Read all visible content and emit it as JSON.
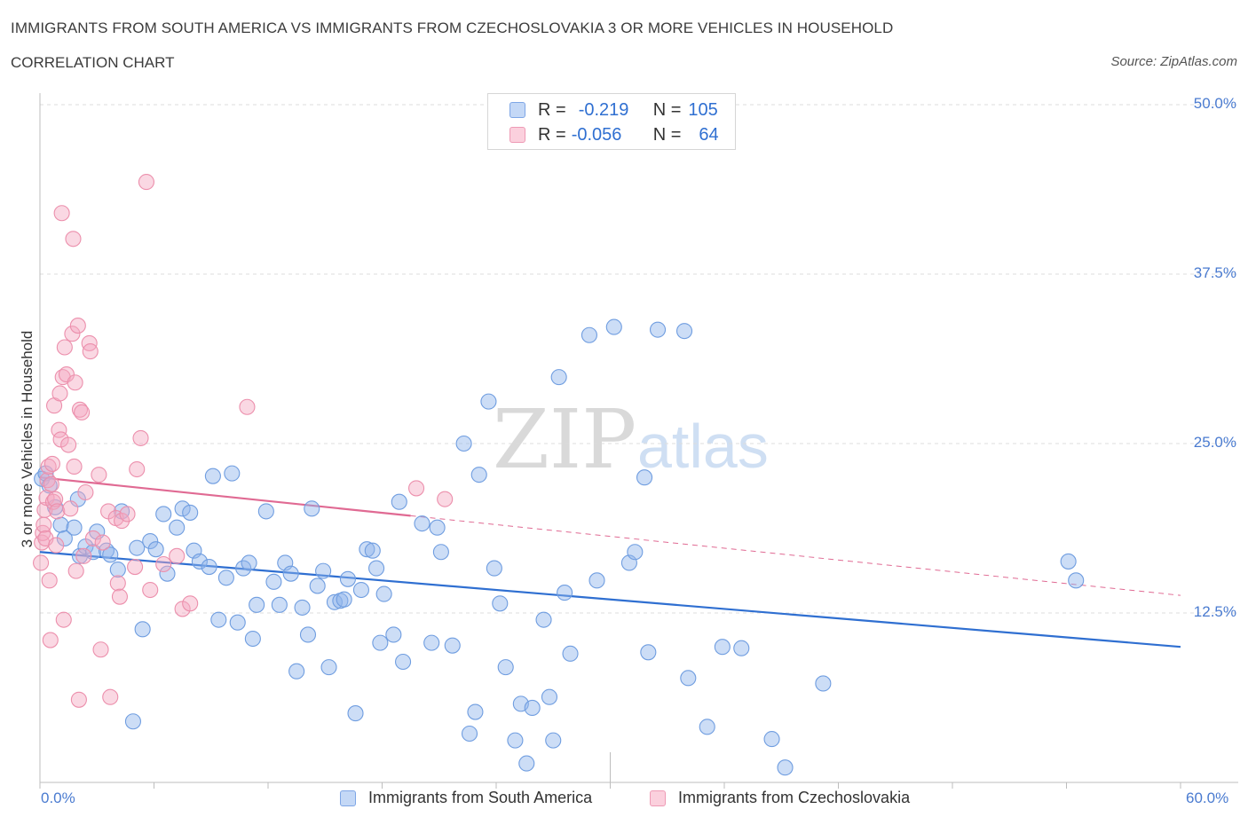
{
  "title": "IMMIGRANTS FROM SOUTH AMERICA VS IMMIGRANTS FROM CZECHOSLOVAKIA 3 OR MORE VEHICLES IN HOUSEHOLD",
  "subtitle": "CORRELATION CHART",
  "source": "Source: ZipAtlas.com",
  "watermark": {
    "zip": "ZIP",
    "atlas": "atlas"
  },
  "legend": {
    "r_label": "R =",
    "n_label": "N =",
    "series": [
      {
        "r": "-0.219",
        "n": "105"
      },
      {
        "r": "-0.056",
        "n": "64"
      }
    ]
  },
  "chart_data": {
    "type": "scatter",
    "xlabel": "",
    "ylabel": "3 or more Vehicles in Household",
    "xlim": [
      0,
      60
    ],
    "ylim": [
      0,
      50
    ],
    "x_tick_labels": [
      "0.0%",
      "60.0%"
    ],
    "y_ticks": [
      12.5,
      25.0,
      37.5,
      50.0
    ],
    "y_tick_labels": [
      "12.5%",
      "25.0%",
      "37.5%",
      "50.0%"
    ],
    "grid": true,
    "legend_position": "top-center",
    "series": [
      {
        "name": "Immigrants from South America",
        "color": "#8db4ec",
        "edge": "#6f9de0",
        "trend": {
          "x": [
            0,
            60
          ],
          "y": [
            17.0,
            10.0
          ],
          "color": "#2f6fd1",
          "dashed_from": null
        },
        "points": [
          [
            0.1,
            22.4
          ],
          [
            0.3,
            22.8
          ],
          [
            0.5,
            21.9
          ],
          [
            0.8,
            20.3
          ],
          [
            1.1,
            19.0
          ],
          [
            1.3,
            18.0
          ],
          [
            1.8,
            18.8
          ],
          [
            2.0,
            20.9
          ],
          [
            2.1,
            16.7
          ],
          [
            2.4,
            17.4
          ],
          [
            2.8,
            17.0
          ],
          [
            3.0,
            18.5
          ],
          [
            3.5,
            17.1
          ],
          [
            3.7,
            16.8
          ],
          [
            4.1,
            15.7
          ],
          [
            4.3,
            20.0
          ],
          [
            4.9,
            4.5
          ],
          [
            5.1,
            17.3
          ],
          [
            5.4,
            11.3
          ],
          [
            5.8,
            17.8
          ],
          [
            6.1,
            17.2
          ],
          [
            6.7,
            15.4
          ],
          [
            6.5,
            19.8
          ],
          [
            7.2,
            18.8
          ],
          [
            7.5,
            20.2
          ],
          [
            7.9,
            19.9
          ],
          [
            8.1,
            17.1
          ],
          [
            8.4,
            16.3
          ],
          [
            8.9,
            15.9
          ],
          [
            9.1,
            22.6
          ],
          [
            9.4,
            12.0
          ],
          [
            9.8,
            15.1
          ],
          [
            10.1,
            22.8
          ],
          [
            10.4,
            11.8
          ],
          [
            10.7,
            15.8
          ],
          [
            11.0,
            16.2
          ],
          [
            11.2,
            10.6
          ],
          [
            11.4,
            13.1
          ],
          [
            11.9,
            20.0
          ],
          [
            12.3,
            14.8
          ],
          [
            12.6,
            13.1
          ],
          [
            12.9,
            16.2
          ],
          [
            13.2,
            15.4
          ],
          [
            13.5,
            8.2
          ],
          [
            13.8,
            12.9
          ],
          [
            14.1,
            10.9
          ],
          [
            14.3,
            20.2
          ],
          [
            14.6,
            14.5
          ],
          [
            14.9,
            15.6
          ],
          [
            15.2,
            8.5
          ],
          [
            15.5,
            13.3
          ],
          [
            15.8,
            13.4
          ],
          [
            16.0,
            13.5
          ],
          [
            16.2,
            15.0
          ],
          [
            16.6,
            5.1
          ],
          [
            16.9,
            14.2
          ],
          [
            17.2,
            17.2
          ],
          [
            17.5,
            17.1
          ],
          [
            17.7,
            15.8
          ],
          [
            17.9,
            10.3
          ],
          [
            18.1,
            13.9
          ],
          [
            18.6,
            10.9
          ],
          [
            18.9,
            20.7
          ],
          [
            19.1,
            8.9
          ],
          [
            20.1,
            19.1
          ],
          [
            20.6,
            10.3
          ],
          [
            20.9,
            18.8
          ],
          [
            21.1,
            17.0
          ],
          [
            21.7,
            10.1
          ],
          [
            22.3,
            25.0
          ],
          [
            22.6,
            3.6
          ],
          [
            22.9,
            5.2
          ],
          [
            23.1,
            22.7
          ],
          [
            23.6,
            28.1
          ],
          [
            23.9,
            15.8
          ],
          [
            24.2,
            13.2
          ],
          [
            24.5,
            8.5
          ],
          [
            25.0,
            3.1
          ],
          [
            25.3,
            5.8
          ],
          [
            25.6,
            1.4
          ],
          [
            25.9,
            5.5
          ],
          [
            26.5,
            12.0
          ],
          [
            26.8,
            6.3
          ],
          [
            27.0,
            3.1
          ],
          [
            27.3,
            29.9
          ],
          [
            27.6,
            14.0
          ],
          [
            27.9,
            9.5
          ],
          [
            28.9,
            33.0
          ],
          [
            29.3,
            14.9
          ],
          [
            30.2,
            33.6
          ],
          [
            31.0,
            16.2
          ],
          [
            31.3,
            17.0
          ],
          [
            31.8,
            22.5
          ],
          [
            32.0,
            9.6
          ],
          [
            32.5,
            33.4
          ],
          [
            33.9,
            33.3
          ],
          [
            34.1,
            7.7
          ],
          [
            35.1,
            4.1
          ],
          [
            35.9,
            10.0
          ],
          [
            36.9,
            9.9
          ],
          [
            38.5,
            3.2
          ],
          [
            39.2,
            1.1
          ],
          [
            41.2,
            7.3
          ],
          [
            54.1,
            16.3
          ],
          [
            54.5,
            14.9
          ]
        ]
      },
      {
        "name": "Immigrants from Czechoslovakia",
        "color": "#f4a9c0",
        "edge": "#ec8fac",
        "trend": {
          "x": [
            0,
            60
          ],
          "y": [
            22.5,
            13.8
          ],
          "color": "#e06a93",
          "dashed_from": 19.5
        },
        "points": [
          [
            0.05,
            16.2
          ],
          [
            0.1,
            17.7
          ],
          [
            0.15,
            18.4
          ],
          [
            0.2,
            19.0
          ],
          [
            0.25,
            20.1
          ],
          [
            0.3,
            18.0
          ],
          [
            0.35,
            21.0
          ],
          [
            0.4,
            22.3
          ],
          [
            0.45,
            23.3
          ],
          [
            0.5,
            14.9
          ],
          [
            0.55,
            10.5
          ],
          [
            0.6,
            22.0
          ],
          [
            0.65,
            23.5
          ],
          [
            0.7,
            20.7
          ],
          [
            0.75,
            27.8
          ],
          [
            0.8,
            20.9
          ],
          [
            0.85,
            17.5
          ],
          [
            0.9,
            20.0
          ],
          [
            1.0,
            26.0
          ],
          [
            1.05,
            28.7
          ],
          [
            1.1,
            25.3
          ],
          [
            1.15,
            42.0
          ],
          [
            1.2,
            29.9
          ],
          [
            1.25,
            12.0
          ],
          [
            1.3,
            32.1
          ],
          [
            1.4,
            30.1
          ],
          [
            1.5,
            24.9
          ],
          [
            1.6,
            20.2
          ],
          [
            1.7,
            33.1
          ],
          [
            1.75,
            40.1
          ],
          [
            1.8,
            23.3
          ],
          [
            1.85,
            29.5
          ],
          [
            1.9,
            15.6
          ],
          [
            2.0,
            33.7
          ],
          [
            2.05,
            6.1
          ],
          [
            2.1,
            27.5
          ],
          [
            2.2,
            27.3
          ],
          [
            2.3,
            16.7
          ],
          [
            2.4,
            21.4
          ],
          [
            2.6,
            32.4
          ],
          [
            2.65,
            31.8
          ],
          [
            2.8,
            18.0
          ],
          [
            3.1,
            22.7
          ],
          [
            3.2,
            9.8
          ],
          [
            3.3,
            17.7
          ],
          [
            3.6,
            20.0
          ],
          [
            3.7,
            6.3
          ],
          [
            4.0,
            19.5
          ],
          [
            4.1,
            14.7
          ],
          [
            4.2,
            13.7
          ],
          [
            4.3,
            19.3
          ],
          [
            4.6,
            19.8
          ],
          [
            5.0,
            15.9
          ],
          [
            5.1,
            23.1
          ],
          [
            5.3,
            25.4
          ],
          [
            5.6,
            44.3
          ],
          [
            5.8,
            14.2
          ],
          [
            6.5,
            16.1
          ],
          [
            7.2,
            16.7
          ],
          [
            7.5,
            12.8
          ],
          [
            7.9,
            13.2
          ],
          [
            10.9,
            27.7
          ],
          [
            19.8,
            21.7
          ],
          [
            21.3,
            20.9
          ]
        ]
      }
    ]
  },
  "bottom_legend": [
    "Immigrants from South America",
    "Immigrants from Czechoslovakia"
  ]
}
